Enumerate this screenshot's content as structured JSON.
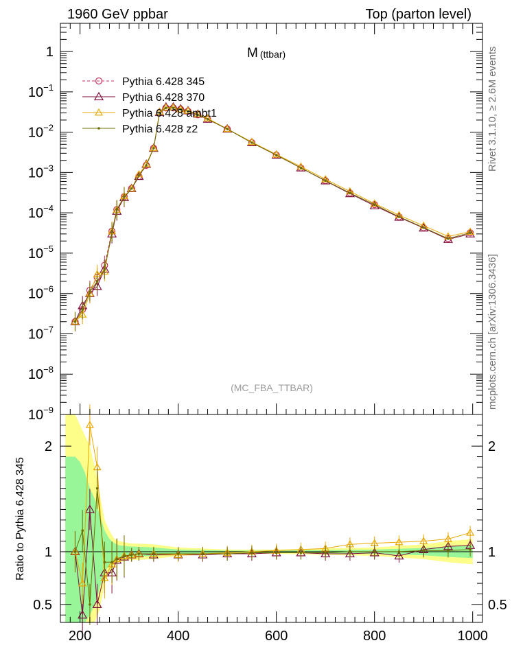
{
  "header": {
    "left": "1960 GeV ppbar",
    "right": "Top (parton level)"
  },
  "side_labels": {
    "rivet": "Rivet 3.1.10, ≥ 2.6M events",
    "mcplots": "mcplots.cern.ch [arXiv:1306.3436]"
  },
  "chart_data": [
    {
      "type": "line",
      "title_main": "M",
      "title_sub": "(ttbar)",
      "analysis": "(MC_FBA_TTBAR)",
      "xlim": [
        160,
        1020
      ],
      "ylim": [
        1e-09,
        5
      ],
      "yscale": "log",
      "y_ticks": [
        {
          "v": 1,
          "t": "1"
        },
        {
          "v": 0.1,
          "b": "10",
          "e": "−1"
        },
        {
          "v": 0.01,
          "b": "10",
          "e": "−2"
        },
        {
          "v": 0.001,
          "b": "10",
          "e": "−3"
        },
        {
          "v": 0.0001,
          "b": "10",
          "e": "−4"
        },
        {
          "v": 1e-05,
          "b": "10",
          "e": "−5"
        },
        {
          "v": 1e-06,
          "b": "10",
          "e": "−6"
        },
        {
          "v": 1e-07,
          "b": "10",
          "e": "−7"
        },
        {
          "v": 1e-08,
          "b": "10",
          "e": "−8"
        },
        {
          "v": 1e-09,
          "b": "10",
          "e": "−9"
        }
      ],
      "legend": [
        "Pythia 6.428 345",
        "Pythia 6.428 370",
        "Pythia 6.428 ambt1",
        "Pythia 6.428 z2"
      ],
      "colors": {
        "p345": "#c8315a",
        "p370": "#7a0f3c",
        "ambt1": "#e8a800",
        "z2": "#6e6e00"
      },
      "series": [
        {
          "name": "Pythia 6.428 345",
          "color": "#c8315a",
          "marker": "circle",
          "x": [
            190,
            205,
            220,
            235,
            250,
            265,
            275,
            290,
            305,
            320,
            335,
            350,
            362,
            375,
            390,
            405,
            420,
            440,
            460,
            500,
            550,
            600,
            650,
            700,
            750,
            800,
            850,
            900,
            950,
            995
          ],
          "y": [
            2e-07,
            4e-07,
            1.2e-06,
            2.5e-06,
            5e-06,
            3.5e-05,
            0.00012,
            0.00025,
            0.0004,
            0.0008,
            0.0015,
            0.004,
            0.03,
            0.04,
            0.04,
            0.037,
            0.033,
            0.027,
            0.021,
            0.012,
            0.0055,
            0.0027,
            0.0013,
            0.00063,
            0.00031,
            0.00016,
            8e-05,
            4.3e-05,
            2.3e-05,
            3.2e-05
          ]
        },
        {
          "name": "Pythia 6.428 370",
          "color": "#7a0f3c",
          "marker": "triangle",
          "x": [
            190,
            205,
            220,
            235,
            250,
            265,
            275,
            290,
            305,
            320,
            335,
            350,
            362,
            375,
            390,
            405,
            420,
            440,
            460,
            500,
            550,
            600,
            650,
            700,
            750,
            800,
            850,
            900,
            950,
            995
          ],
          "y": [
            2e-07,
            5e-07,
            1e-06,
            1.5e-06,
            4e-06,
            3e-05,
            0.00011,
            0.00024,
            0.0004,
            0.0008,
            0.0016,
            0.004,
            0.031,
            0.042,
            0.042,
            0.038,
            0.034,
            0.028,
            0.021,
            0.012,
            0.0055,
            0.0027,
            0.0013,
            0.00062,
            0.0003,
            0.00015,
            7.8e-05,
            4.2e-05,
            2.2e-05,
            3e-05
          ]
        },
        {
          "name": "Pythia 6.428 ambt1",
          "color": "#e8a800",
          "marker": "triangle-open",
          "x": [
            190,
            205,
            220,
            235,
            250,
            265,
            275,
            290,
            305,
            320,
            335,
            350,
            362,
            375,
            390,
            405,
            420,
            440,
            460,
            500,
            550,
            600,
            650,
            700,
            750,
            800,
            850,
            900,
            950,
            995
          ],
          "y": [
            2e-07,
            3e-07,
            1e-06,
            3e-06,
            3.5e-06,
            3.5e-05,
            0.00012,
            0.00026,
            0.0004,
            0.0009,
            0.0016,
            0.004,
            0.032,
            0.041,
            0.041,
            0.037,
            0.034,
            0.028,
            0.022,
            0.012,
            0.0057,
            0.0028,
            0.0014,
            0.00068,
            0.00034,
            0.00017,
            8.8e-05,
            4.8e-05,
            2.6e-05,
            3.4e-05
          ]
        },
        {
          "name": "Pythia 6.428 z2",
          "color": "#6e6e00",
          "marker": "dot",
          "x": [
            190,
            205,
            220,
            235,
            250,
            265,
            275,
            290,
            305,
            320,
            335,
            350,
            362,
            375,
            390,
            405,
            420,
            440,
            460,
            500,
            550,
            600,
            650,
            700,
            750,
            800,
            850,
            900,
            950,
            995
          ],
          "y": [
            2e-07,
            4e-07,
            1.1e-06,
            2e-06,
            4e-06,
            3.3e-05,
            0.00012,
            0.00025,
            0.0004,
            0.00085,
            0.0015,
            0.004,
            0.03,
            0.04,
            0.04,
            0.037,
            0.033,
            0.027,
            0.021,
            0.012,
            0.0055,
            0.0027,
            0.0013,
            0.00063,
            0.00031,
            0.00016,
            8e-05,
            4.3e-05,
            2.3e-05,
            3.2e-05
          ]
        }
      ]
    },
    {
      "type": "line",
      "ylabel": "Ratio to Pythia 6.428 345",
      "xlim": [
        160,
        1020
      ],
      "ylim": [
        0.33,
        2.3
      ],
      "x_ticks": [
        200,
        400,
        600,
        800,
        1000
      ],
      "y_ticks": [
        {
          "v": 0.5,
          "t": "0.5"
        },
        {
          "v": 1,
          "t": "1"
        },
        {
          "v": 2,
          "t": "2"
        }
      ],
      "series": [
        {
          "name": "Pythia 6.428 370",
          "color": "#7a0f3c",
          "x": [
            190,
            205,
            220,
            235,
            250,
            265,
            275,
            290,
            305,
            320,
            350,
            400,
            450,
            500,
            550,
            600,
            650,
            700,
            750,
            800,
            850,
            900,
            950,
            995
          ],
          "y": [
            1.0,
            0.4,
            1.4,
            0.5,
            0.8,
            0.8,
            0.92,
            0.95,
            0.97,
            0.98,
            0.97,
            0.97,
            0.97,
            0.98,
            0.98,
            0.99,
            0.99,
            0.98,
            0.98,
            0.99,
            0.96,
            1.02,
            1.05,
            1.06
          ]
        },
        {
          "name": "Pythia 6.428 ambt1",
          "color": "#e8a800",
          "x": [
            190,
            205,
            220,
            235,
            250,
            265,
            275,
            290,
            305,
            320,
            350,
            400,
            450,
            500,
            550,
            600,
            650,
            700,
            750,
            800,
            850,
            900,
            950,
            995
          ],
          "y": [
            1.0,
            0.7,
            2.2,
            1.8,
            0.75,
            0.88,
            0.93,
            0.96,
            0.97,
            0.98,
            0.98,
            0.97,
            0.98,
            0.99,
            1.0,
            1.01,
            1.02,
            1.03,
            1.07,
            1.08,
            1.09,
            1.1,
            1.12,
            1.18
          ]
        },
        {
          "name": "Pythia 6.428 z2",
          "color": "#6e6e00",
          "x": [
            190,
            205,
            220,
            235,
            250,
            265,
            275,
            290,
            305,
            320,
            350,
            400,
            450,
            500,
            550,
            600,
            650,
            700,
            750,
            800,
            850,
            900,
            950,
            995
          ],
          "y": [
            1.0,
            1.2,
            0.5,
            1.6,
            0.9,
            0.9,
            0.93,
            0.96,
            0.97,
            0.98,
            0.98,
            0.98,
            0.98,
            0.98,
            0.99,
            0.99,
            0.99,
            0.99,
            1.0,
            1.0,
            1.0,
            1.01,
            1.01,
            1.02
          ]
        }
      ],
      "band_x": [
        170,
        180,
        190,
        200,
        210,
        220,
        230,
        240,
        250,
        260,
        270,
        280,
        300,
        350,
        400,
        500,
        600,
        700,
        800,
        900,
        950,
        1000
      ],
      "band_green_half": [
        0.9,
        0.9,
        0.9,
        0.85,
        0.75,
        0.6,
        0.5,
        0.35,
        0.2,
        0.12,
        0.08,
        0.06,
        0.05,
        0.04,
        0.02,
        0.01,
        0.01,
        0.015,
        0.02,
        0.035,
        0.05,
        0.06
      ],
      "band_yellow_half": [
        1.3,
        1.3,
        1.3,
        1.2,
        1.1,
        1.0,
        0.8,
        0.55,
        0.3,
        0.2,
        0.12,
        0.1,
        0.08,
        0.07,
        0.04,
        0.02,
        0.02,
        0.03,
        0.04,
        0.07,
        0.1,
        0.12
      ]
    }
  ]
}
